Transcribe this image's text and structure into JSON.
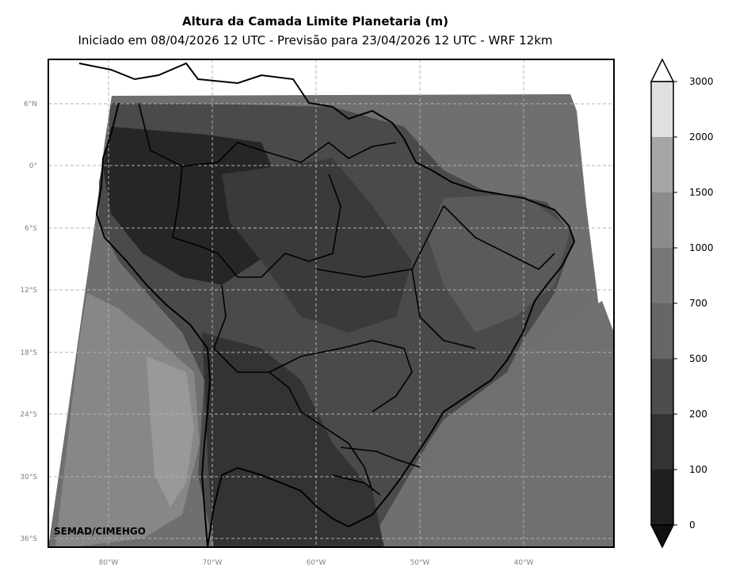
{
  "header": {
    "title": "Altura da Camada Limite Planetaria (m)",
    "subtitle": "Iniciado em 08/04/2026 12 UTC - Previsão para 23/04/2026 12 UTC - WRF 12km"
  },
  "map": {
    "lat_labels": [
      "6°N",
      "0°",
      "6°S",
      "12°S",
      "18°S",
      "24°S",
      "30°S",
      "36°S"
    ],
    "lon_labels": [
      "80°W",
      "70°W",
      "60°W",
      "50°W",
      "40°W"
    ],
    "credit": "SEMAD/CIMEHGO",
    "grid_style": "dashed"
  },
  "colorbar": {
    "tick_labels": [
      "0",
      "100",
      "200",
      "500",
      "700",
      "1000",
      "1500",
      "2000",
      "3000"
    ],
    "levels_gray": [
      "#1f1f1f",
      "#333333",
      "#4d4d4d",
      "#666666",
      "#777777",
      "#8c8c8c",
      "#a6a6a6",
      "#e0e0e0"
    ],
    "extend": "both"
  }
}
